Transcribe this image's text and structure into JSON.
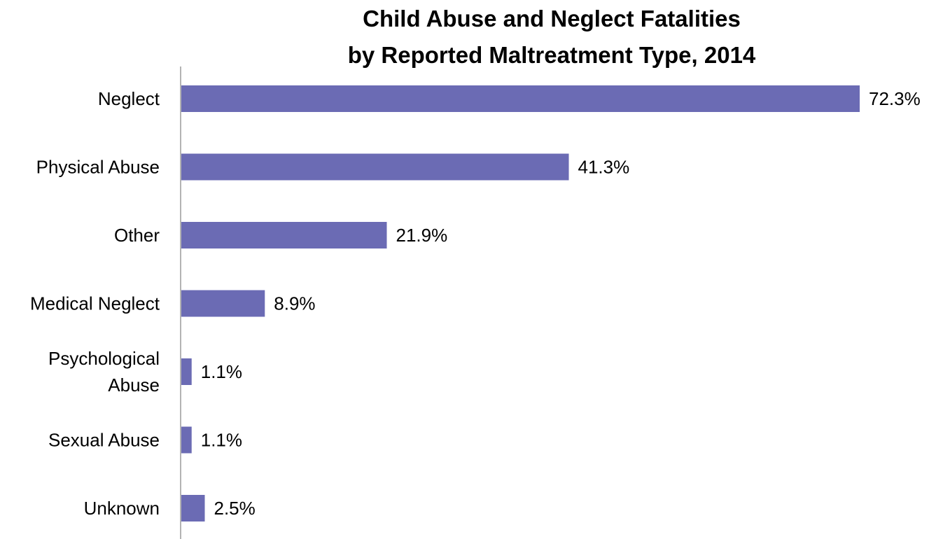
{
  "chart_data": {
    "type": "bar",
    "orientation": "horizontal",
    "title_lines": [
      "Child Abuse and Neglect Fatalities",
      "by Reported Maltreatment Type, 2014"
    ],
    "categories": [
      [
        "Neglect"
      ],
      [
        "Physical Abuse"
      ],
      [
        "Other"
      ],
      [
        "Medical Neglect"
      ],
      [
        "Psychological",
        "Abuse"
      ],
      [
        "Sexual Abuse"
      ],
      [
        "Unknown"
      ]
    ],
    "values": [
      72.3,
      41.3,
      21.9,
      8.9,
      1.1,
      1.1,
      2.5
    ],
    "data_labels": [
      "72.3%",
      "41.3%",
      "21.9%",
      "8.9%",
      "1.1%",
      "1.1%",
      "2.5%"
    ],
    "xlim": [
      0,
      75
    ],
    "grid": false,
    "legend": "none",
    "bar_color": "#6b6bb4",
    "axis_color": "#9a9a9a"
  }
}
